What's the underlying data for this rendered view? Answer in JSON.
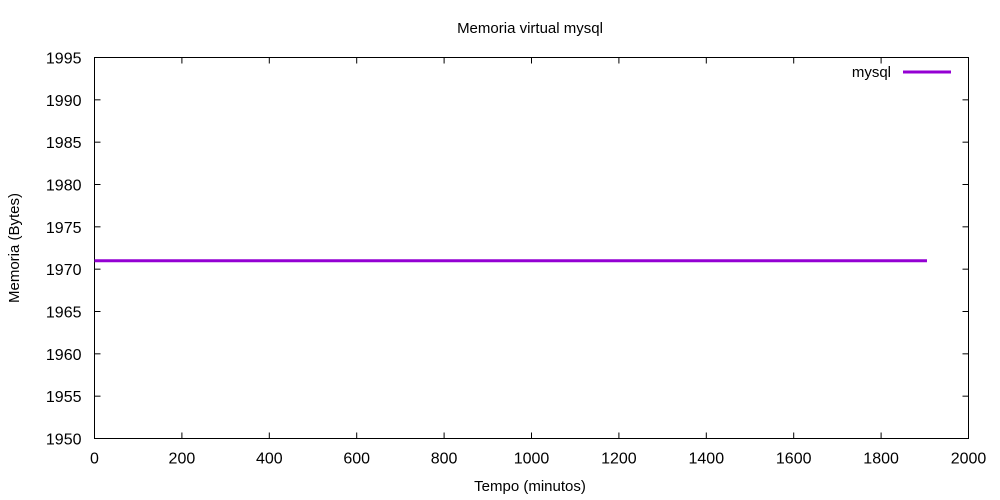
{
  "chart_data": {
    "type": "line",
    "title": "Memoria virtual mysql",
    "xlabel": "Tempo (minutos)",
    "ylabel": "Memoria (Bytes)",
    "xlim": [
      0,
      2000
    ],
    "ylim": [
      1950,
      1995
    ],
    "xticks": [
      0,
      200,
      400,
      600,
      800,
      1000,
      1200,
      1400,
      1600,
      1800,
      2000
    ],
    "yticks": [
      1950,
      1955,
      1960,
      1965,
      1970,
      1975,
      1980,
      1985,
      1990,
      1995
    ],
    "grid": false,
    "legend": {
      "placement": "top-right"
    },
    "series": [
      {
        "name": "mysql",
        "color": "#9400d3",
        "x": [
          0,
          1905
        ],
        "y": [
          1971,
          1971
        ]
      }
    ]
  }
}
